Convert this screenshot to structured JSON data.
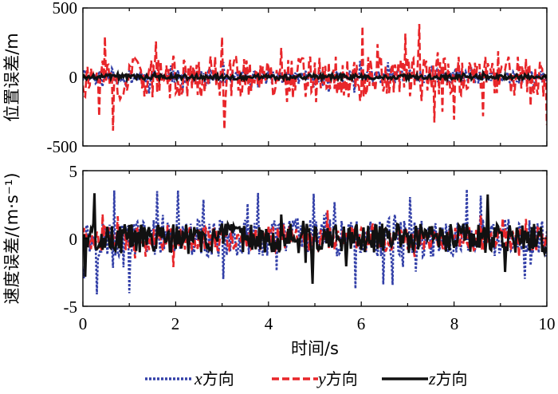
{
  "chart_data": [
    {
      "type": "line",
      "ylabel": "位置误差/m",
      "xlim": [
        0,
        10
      ],
      "ylim": [
        -500,
        500
      ],
      "yticks": [
        "500",
        "0",
        "-500"
      ],
      "series": [
        {
          "name": "x方向",
          "color": "#3340a8",
          "dash": "3,2",
          "amplitude": 50,
          "spike_prob": 0.08,
          "spike_amp": 120
        },
        {
          "name": "y方向",
          "color": "#e8262a",
          "dash": "9,4",
          "amplitude": 150,
          "spike_prob": 0.12,
          "spike_amp": 420
        },
        {
          "name": "z方向",
          "color": "#111111",
          "dash": "",
          "amplitude": 18,
          "spike_prob": 0.03,
          "spike_amp": 35
        }
      ]
    },
    {
      "type": "line",
      "ylabel": "速度误差/(m·s⁻¹)",
      "xlabel": "时间/s",
      "xlim": [
        0,
        10
      ],
      "ylim": [
        -5,
        5
      ],
      "yticks": [
        "5",
        "0",
        "-5"
      ],
      "xticks": [
        "0",
        "2",
        "4",
        "6",
        "8",
        "10"
      ],
      "series": [
        {
          "name": "x方向",
          "color": "#3340a8",
          "dash": "3,2",
          "amplitude": 1.4,
          "spike_prob": 0.1,
          "spike_amp": 4.2
        },
        {
          "name": "y方向",
          "color": "#e8262a",
          "dash": "9,4",
          "amplitude": 0.9,
          "spike_prob": 0.05,
          "spike_amp": 2.2
        },
        {
          "name": "z方向",
          "color": "#111111",
          "dash": "",
          "amplitude": 1.1,
          "spike_prob": 0.06,
          "spike_amp": 3.4
        }
      ]
    }
  ],
  "legend": [
    {
      "var": "x",
      "suffix": "方向"
    },
    {
      "var": "y",
      "suffix": "方向"
    },
    {
      "var": "z",
      "suffix": "方向"
    }
  ]
}
